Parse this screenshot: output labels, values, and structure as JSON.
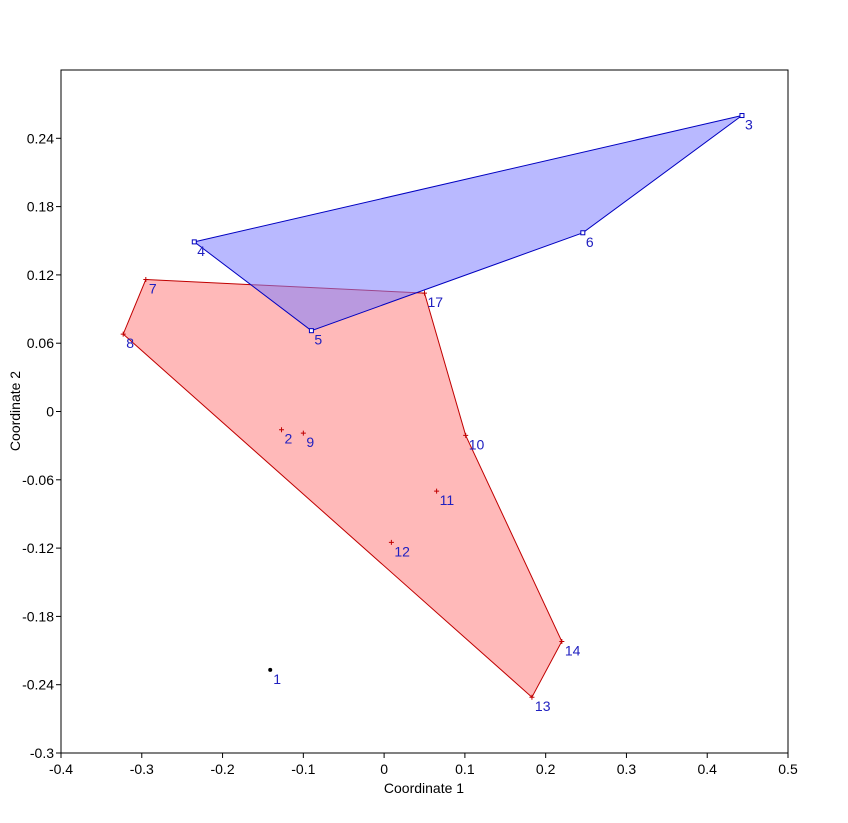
{
  "chart_data": {
    "type": "scatter",
    "title": "",
    "xlabel": "Coordinate 1",
    "ylabel": "Coordinate 2",
    "xlim": [
      -0.4,
      0.5
    ],
    "ylim": [
      -0.3,
      0.3
    ],
    "x_ticks": [
      -0.4,
      -0.3,
      -0.2,
      -0.1,
      0,
      0.1,
      0.2,
      0.3,
      0.4,
      0.5
    ],
    "x_tick_labels": [
      "-0.4",
      "-0.3",
      "-0.2",
      "-0.1",
      "0",
      "0.1",
      "0.2",
      "0.3",
      "0.4",
      "0.5"
    ],
    "y_ticks": [
      0.24,
      0.18,
      0.12,
      0.06,
      0,
      -0.06,
      -0.12,
      -0.18,
      -0.24,
      -0.3
    ],
    "y_tick_labels": [
      "0.24",
      "0.18",
      "0.12",
      "0.06",
      "0",
      "-0.06",
      "-0.12",
      "-0.18",
      "-0.24",
      "-0.3"
    ],
    "grid": false,
    "legend": "none",
    "groups": [
      {
        "color": "#c00000",
        "fill": "#ff8080",
        "marker": "plus",
        "hull": [
          "7",
          "17",
          "10",
          "14",
          "13",
          "8"
        ],
        "points": [
          {
            "label": "2",
            "x": -0.127,
            "y": -0.016
          },
          {
            "label": "7",
            "x": -0.295,
            "y": 0.116
          },
          {
            "label": "8",
            "x": -0.323,
            "y": 0.068
          },
          {
            "label": "9",
            "x": -0.1,
            "y": -0.019
          },
          {
            "label": "10",
            "x": 0.101,
            "y": -0.021
          },
          {
            "label": "11",
            "x": 0.065,
            "y": -0.07
          },
          {
            "label": "12",
            "x": 0.009,
            "y": -0.115
          },
          {
            "label": "13",
            "x": 0.183,
            "y": -0.251
          },
          {
            "label": "14",
            "x": 0.22,
            "y": -0.202
          },
          {
            "label": "17",
            "x": 0.05,
            "y": 0.104
          }
        ]
      },
      {
        "color": "#0000c0",
        "fill": "#8080ff",
        "marker": "square",
        "hull": [
          "4",
          "3",
          "6",
          "5"
        ],
        "points": [
          {
            "label": "3",
            "x": 0.443,
            "y": 0.26
          },
          {
            "label": "4",
            "x": -0.235,
            "y": 0.149
          },
          {
            "label": "5",
            "x": -0.09,
            "y": 0.071
          },
          {
            "label": "6",
            "x": 0.246,
            "y": 0.157
          }
        ]
      },
      {
        "color": "#000000",
        "fill": "none",
        "marker": "dot",
        "hull": [],
        "points": [
          {
            "label": "1",
            "x": -0.141,
            "y": -0.227
          }
        ]
      }
    ]
  }
}
